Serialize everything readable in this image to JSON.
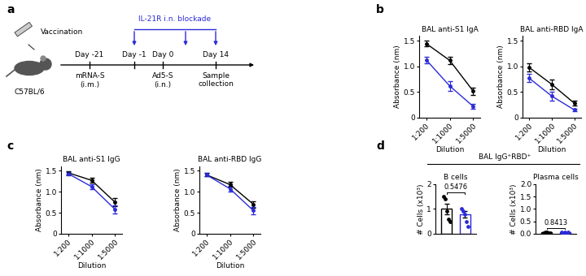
{
  "panel_labels": [
    "a",
    "b",
    "c",
    "d"
  ],
  "diagram": {
    "left_label": "Vaccination",
    "mouse": "C57BL/6",
    "blockade": "IL-21R i.n. blockade",
    "timeline": [
      {
        "day": "Day -21",
        "event": [
          "mRNA-S",
          "(i.m.)"
        ]
      },
      {
        "day": "Day -1",
        "event": []
      },
      {
        "day": "Day 0",
        "event": [
          "Ad5-S",
          "(i.n.)"
        ]
      },
      {
        "day": "Day 14",
        "event": [
          "Sample",
          "collection"
        ]
      }
    ]
  },
  "group_title": "BAL IgG⁺RBD⁺",
  "chart_data": [
    {
      "type": "line",
      "title": "BAL anti-S1 IgA",
      "x_label": "Dilution",
      "y_label": "Absorbance (nm)",
      "categories": [
        "1:200",
        "1:1000",
        "1:5000"
      ],
      "ylim": [
        0,
        1.6
      ],
      "yticks": [
        0,
        0.5,
        {
          "value": 1,
          "label": "1.0"
        },
        1.5
      ],
      "series": [
        {
          "color": "#000000",
          "marker": "o",
          "values": [
            1.45,
            1.12,
            0.52
          ],
          "errors": [
            0.06,
            0.07,
            0.07
          ]
        },
        {
          "color": "#2b2bd9",
          "marker": "o",
          "values": [
            1.13,
            0.62,
            0.22
          ],
          "errors": [
            0.06,
            0.09,
            0.04
          ]
        }
      ]
    },
    {
      "type": "line",
      "title": "BAL anti-RBD IgA",
      "x_label": "Dilution",
      "y_label": "Absorbance (nm)",
      "categories": [
        "1:200",
        "1:1000",
        "1:5000"
      ],
      "ylim": [
        0,
        1.6
      ],
      "yticks": [
        0,
        0.5,
        {
          "value": 1,
          "label": "1.0"
        },
        1.5
      ],
      "series": [
        {
          "color": "#000000",
          "marker": "o",
          "values": [
            0.98,
            0.65,
            0.28
          ],
          "errors": [
            0.08,
            0.09,
            0.05
          ]
        },
        {
          "color": "#2b2bd9",
          "marker": "o",
          "values": [
            0.77,
            0.42,
            0.15
          ],
          "errors": [
            0.08,
            0.09,
            0.03
          ]
        }
      ]
    },
    {
      "type": "line",
      "title": "BAL anti-S1 IgG",
      "x_label": "Dilution",
      "y_label": "Absorbance (nm)",
      "categories": [
        "1:200",
        "1:1000",
        "1:5000"
      ],
      "ylim": [
        0,
        1.6
      ],
      "yticks": [
        0,
        0.5,
        {
          "value": 1,
          "label": "1.0"
        },
        1.5
      ],
      "series": [
        {
          "color": "#000000",
          "marker": "o",
          "values": [
            1.45,
            1.27,
            0.75
          ],
          "errors": [
            0.04,
            0.06,
            0.09
          ]
        },
        {
          "color": "#2b2bd9",
          "marker": "o",
          "values": [
            1.43,
            1.12,
            0.58
          ],
          "errors": [
            0.04,
            0.06,
            0.09
          ]
        }
      ]
    },
    {
      "type": "line",
      "title": "BAL anti-RBD IgG",
      "x_label": "Dilution",
      "y_label": "Absorbance (nm)",
      "categories": [
        "1:200",
        "1:1000",
        "1:5000"
      ],
      "ylim": [
        0,
        1.6
      ],
      "yticks": [
        0,
        0.5,
        {
          "value": 1,
          "label": "1.0"
        },
        1.5
      ],
      "series": [
        {
          "color": "#000000",
          "marker": "o",
          "values": [
            1.4,
            1.17,
            0.7
          ],
          "errors": [
            0.04,
            0.06,
            0.08
          ]
        },
        {
          "color": "#2b2bd9",
          "marker": "o",
          "values": [
            1.4,
            1.07,
            0.55
          ],
          "errors": [
            0.04,
            0.06,
            0.08
          ]
        }
      ]
    },
    {
      "type": "bar",
      "title": "B cells",
      "y_label": "# Cells (x10³)",
      "tick_labels": "y",
      "categories": [
        null,
        null
      ],
      "ylim": [
        0,
        2
      ],
      "yticks": [
        0,
        1,
        2
      ],
      "values": [
        1.0,
        0.78
      ],
      "errors": [
        0.2,
        0.13
      ],
      "colors": [
        "#000000",
        "#2b2bd9"
      ],
      "points": [
        [
          1.5,
          1.4,
          0.9,
          0.6,
          0.5
        ],
        [
          1.0,
          0.9,
          0.8,
          0.5,
          0.3
        ]
      ],
      "annotations": [
        "0.5476"
      ]
    },
    {
      "type": "bar",
      "title": "Plasma cells",
      "y_label": "# Cells (x10³)",
      "tick_labels": "y",
      "categories": [
        null,
        null
      ],
      "ylim": [
        0,
        2
      ],
      "yticks": [
        {
          "value": 0,
          "label": "0.0"
        },
        0.5,
        {
          "value": 1,
          "label": "1.0"
        },
        1.5,
        {
          "value": 2,
          "label": "2.0"
        }
      ],
      "values": [
        0.05,
        0.05
      ],
      "errors": [
        0.01,
        0.01
      ],
      "colors": [
        "#000000",
        "#2b2bd9"
      ],
      "points": [
        [
          0.03,
          0.05,
          0.08,
          0.02,
          0.04
        ],
        [
          0.05,
          0.03,
          0.07,
          0.02,
          0.06
        ]
      ],
      "annotations": [
        "0.8413"
      ]
    }
  ]
}
